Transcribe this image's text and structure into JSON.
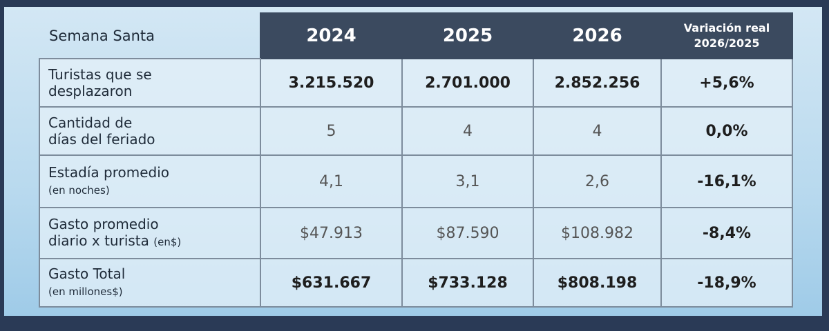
{
  "table": {
    "corner": "Semana Santa",
    "years": [
      "2024",
      "2025",
      "2026"
    ],
    "variation": [
      "Variación real",
      "2026/2025"
    ],
    "rows": [
      {
        "label": [
          "Turistas que se",
          "desplazaron"
        ],
        "values": [
          "3.215.520",
          "2.701.000",
          "2.852.256"
        ],
        "variation": "+5,6%"
      },
      {
        "label": [
          "Cantidad de",
          "días del feriado"
        ],
        "values": [
          "5",
          "4",
          "4"
        ],
        "variation": "0,0%"
      },
      {
        "label": [
          "Estadía promedio",
          "(en noches)"
        ],
        "values": [
          "4,1",
          "3,1",
          "2,6"
        ],
        "variation": "-16,1%"
      },
      {
        "label": [
          "Gasto promedio",
          "diario x turista",
          "(en$)"
        ],
        "values": [
          "$47.913",
          "$87.590",
          "$108.982"
        ],
        "variation": "-8,4%"
      },
      {
        "label": [
          "Gasto Total",
          "(en millones$)"
        ],
        "values": [
          "$631.667",
          "$733.128",
          "$808.198"
        ],
        "variation": "-18,9%"
      }
    ]
  }
}
